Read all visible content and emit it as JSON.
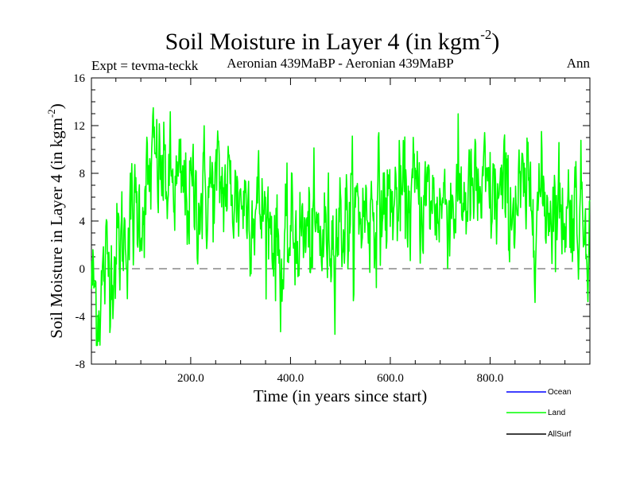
{
  "chart_data": {
    "type": "line",
    "title": "Soil Moisture in Layer 4 (in kgm",
    "title_sup": "-2",
    "title_end": ")",
    "subtitle_left": "Expt = tevma-teckk",
    "subtitle_center": "Aeronian 439MaBP - Aeronian 439MaBP",
    "subtitle_right": "Ann",
    "xlabel": "Time (in years since start)",
    "ylabel": "Soil Moisture in Layer 4 (in kgm",
    "ylabel_sup": "-2",
    "ylabel_end": ")",
    "xlim": [
      1,
      1000
    ],
    "ylim": [
      -8,
      16
    ],
    "x_ticks": [
      200,
      400,
      600,
      800
    ],
    "x_tick_labels": [
      "200.0",
      "400.0",
      "600.0",
      "800.0"
    ],
    "y_ticks": [
      -8,
      -4,
      0,
      4,
      8,
      12,
      16
    ],
    "y_tick_labels": [
      "-8",
      "-4",
      "0",
      "4",
      "8",
      "12",
      "16"
    ],
    "zero_line": 0,
    "trend_anchors": {
      "x": [
        1,
        15,
        30,
        45,
        60,
        80,
        100,
        115,
        125,
        140,
        160,
        180,
        200,
        220,
        240,
        260,
        280,
        300,
        320,
        340,
        360,
        375,
        385,
        400,
        420,
        440,
        460,
        480,
        500,
        530,
        560,
        600,
        650,
        700,
        750,
        800,
        850,
        900,
        950,
        980,
        1000
      ],
      "y": [
        -1,
        -3,
        0,
        1,
        2,
        4,
        5,
        7,
        9,
        8,
        7,
        6.5,
        6,
        6,
        6.5,
        7,
        6.5,
        6,
        5.5,
        5,
        4,
        2,
        -0.5,
        3,
        3,
        2.5,
        2.5,
        3,
        4,
        4.5,
        5,
        5.5,
        6,
        5.5,
        6,
        6,
        5.5,
        6,
        5,
        5,
        4
      ]
    },
    "noise_amplitude": 2.2,
    "series": [
      {
        "name": "Ocean",
        "color": "#0000ff",
        "visible": false
      },
      {
        "name": "Land",
        "color": "#00ff00",
        "visible": true
      },
      {
        "name": "AllSurf",
        "color": "#000000",
        "visible": false
      }
    ]
  }
}
